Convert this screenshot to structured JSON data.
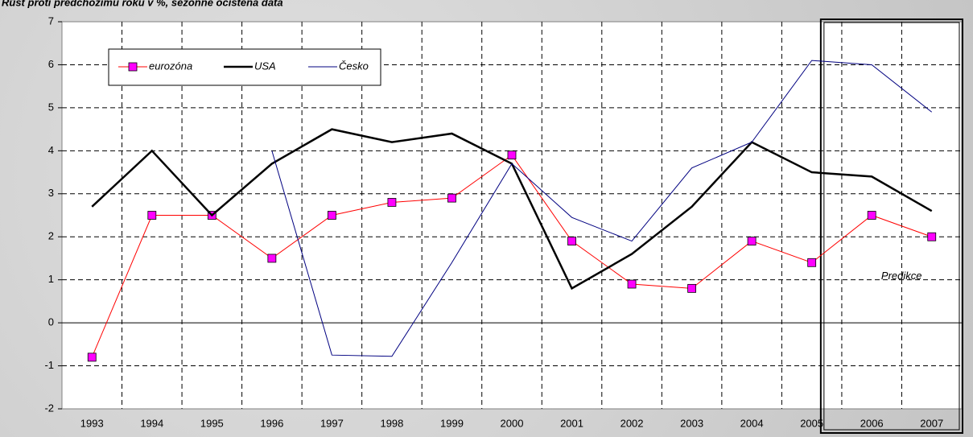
{
  "chart_data": {
    "type": "line",
    "title": "Růst proti předchozímu roku v %, sezónně očištěná data",
    "annotation": "Predikce",
    "categories": [
      "1993",
      "1994",
      "1995",
      "1996",
      "1997",
      "1998",
      "1999",
      "2000",
      "2001",
      "2002",
      "2003",
      "2004",
      "2005",
      "2006",
      "2007"
    ],
    "series": [
      {
        "name": "eurozóna",
        "color": "#ff0000",
        "marker": "#ff00ff",
        "values": [
          -0.8,
          2.5,
          2.5,
          1.5,
          2.5,
          2.8,
          2.9,
          3.9,
          1.9,
          0.9,
          0.8,
          1.9,
          1.4,
          2.5,
          2.0
        ]
      },
      {
        "name": "USA",
        "color": "#000000",
        "values": [
          2.7,
          4.0,
          2.5,
          3.7,
          4.5,
          4.2,
          4.4,
          3.7,
          0.8,
          1.6,
          2.7,
          4.2,
          3.5,
          3.4,
          2.6
        ]
      },
      {
        "name": "Česko",
        "color": "#000080",
        "values": [
          null,
          null,
          null,
          4.0,
          -0.75,
          -0.78,
          1.4,
          3.7,
          2.45,
          1.9,
          3.6,
          4.2,
          6.1,
          6.0,
          4.9
        ]
      }
    ],
    "ylim": [
      -2,
      7
    ],
    "yticks": [
      -2,
      -1,
      0,
      1,
      2,
      3,
      4,
      5,
      6,
      7
    ],
    "grid": true
  }
}
